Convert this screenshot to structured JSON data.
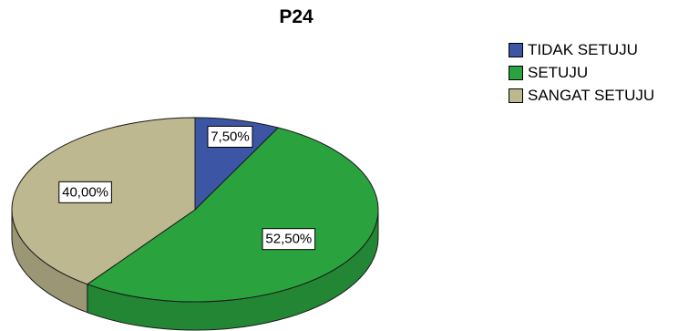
{
  "chart_data": {
    "type": "pie",
    "title": "P24",
    "categories": [
      "TIDAK SETUJU",
      "SETUJU",
      "SANGAT SETUJU"
    ],
    "values": [
      7.5,
      52.5,
      40.0
    ],
    "data_labels": [
      "7,50%",
      "52,50%",
      "40,00%"
    ],
    "colors": [
      "#3c55a4",
      "#2aa33f",
      "#bdb88f"
    ],
    "legend_position": "top-right"
  }
}
